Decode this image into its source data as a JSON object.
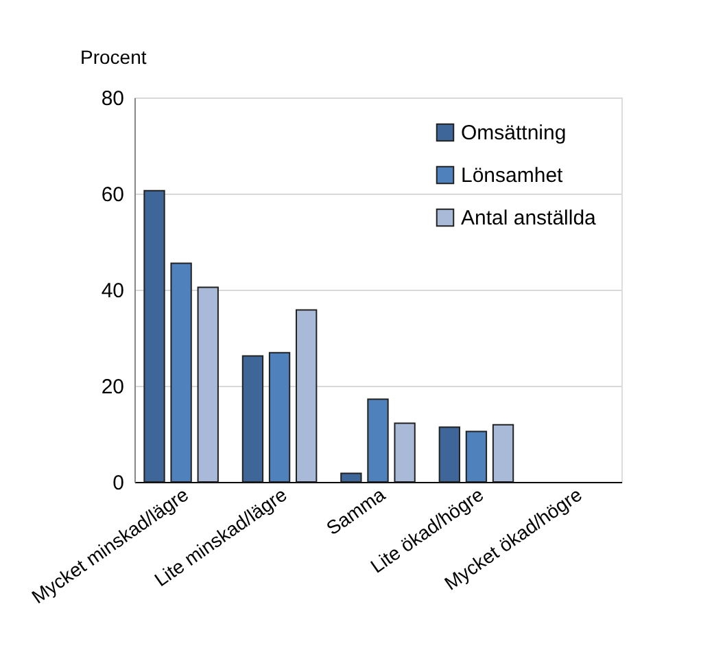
{
  "chart_data": {
    "type": "bar",
    "ylabel": "Procent",
    "categories": [
      "Mycket minskad/lägre",
      "Lite minskad/lägre",
      "Samma",
      "Lite ökad/högre",
      "Mycket ökad/högre"
    ],
    "series": [
      {
        "name": "Omsättning",
        "color": "#3f6699",
        "values": [
          60.6,
          26.2,
          1.8,
          11.4,
          null
        ]
      },
      {
        "name": "Lönsamhet",
        "color": "#4f81bd",
        "values": [
          45.5,
          26.9,
          17.2,
          10.5,
          null
        ]
      },
      {
        "name": "Antal anställda",
        "color": "#a9b9d8",
        "values": [
          40.5,
          35.8,
          12.2,
          11.9,
          null
        ]
      }
    ],
    "ylim": [
      0,
      80
    ],
    "yticks": [
      0,
      20,
      40,
      60,
      80
    ],
    "grid": "y",
    "legend": "top right"
  }
}
